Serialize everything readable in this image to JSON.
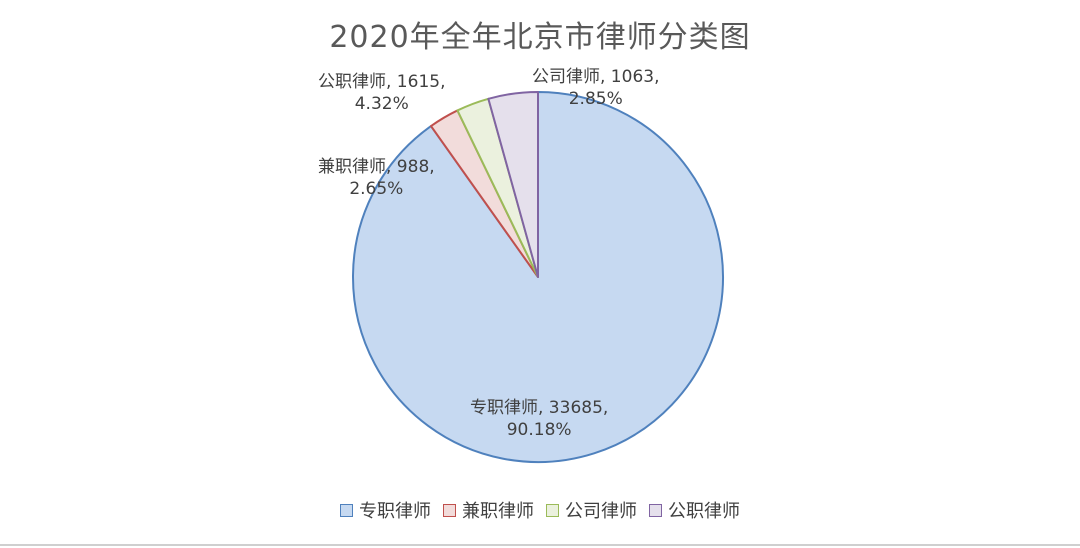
{
  "chart_data": {
    "type": "pie",
    "title": "2020年全年北京市律师分类图",
    "categories": [
      "专职律师",
      "兼职律师",
      "公司律师",
      "公职律师"
    ],
    "values": [
      33685,
      988,
      1063,
      1615
    ],
    "percent_labels": [
      "90.18%",
      "2.65%",
      "2.85%",
      "4.32%"
    ],
    "data_labels": [
      {
        "line1": "专职律师, 33685,",
        "line2": "90.18%"
      },
      {
        "line1": "兼职律师, 988,",
        "line2": "2.65%"
      },
      {
        "line1": "公司律师, 1063,",
        "line2": "2.85%"
      },
      {
        "line1": "公职律师, 1615,",
        "line2": "4.32%"
      }
    ],
    "colors": {
      "fill": [
        "#c6d9f1",
        "#f2dcdb",
        "#ebf1de",
        "#e5e0ec"
      ],
      "stroke": [
        "#4f81bd",
        "#c0504d",
        "#9bbb59",
        "#8064a2"
      ]
    },
    "legend": {
      "placement": "bottom",
      "entries": [
        "专职律师",
        "兼职律师",
        "公司律师",
        "公职律师"
      ]
    }
  }
}
